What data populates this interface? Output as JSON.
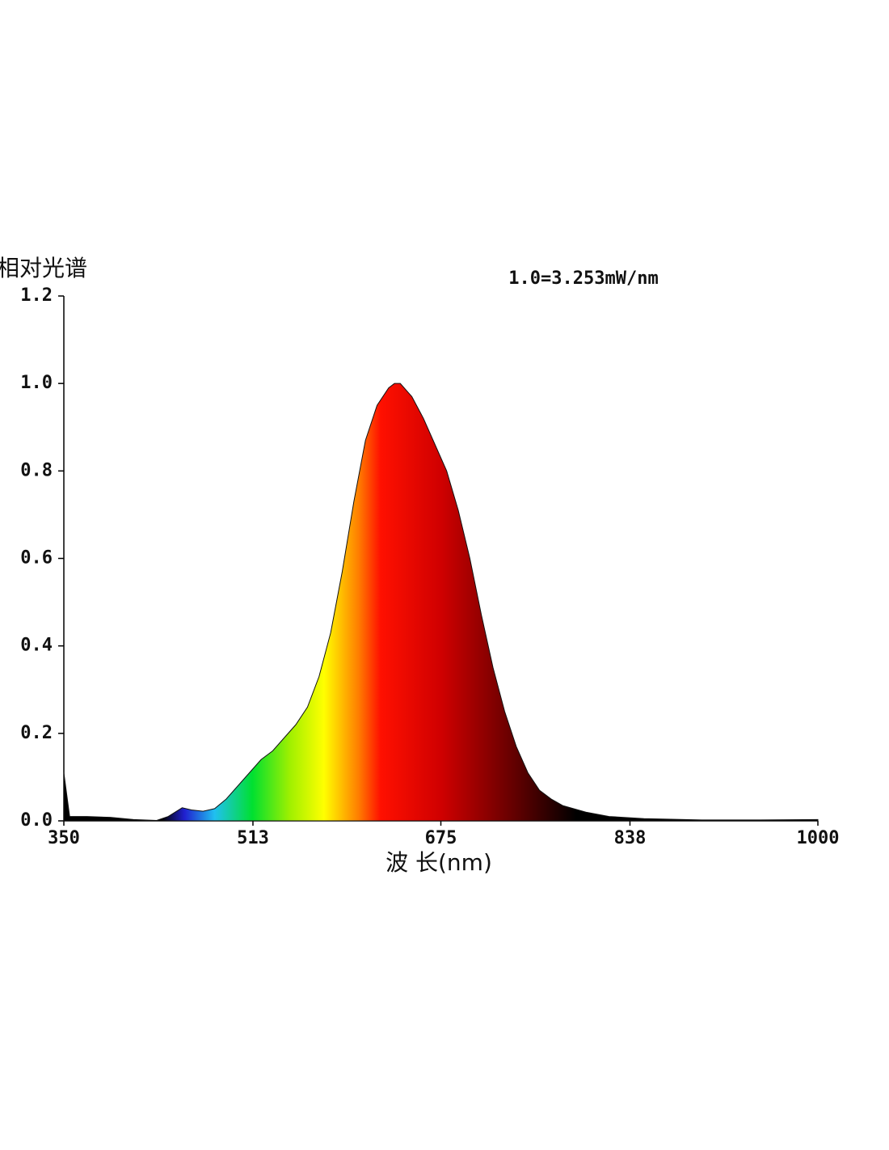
{
  "chart_data": {
    "type": "area",
    "y_label": "相对光谱",
    "annotation": "1.0=3.253mW/nm",
    "x_label": "波 长(nm)",
    "x": [
      350,
      355,
      370,
      390,
      410,
      430,
      440,
      452,
      460,
      470,
      480,
      490,
      500,
      510,
      520,
      530,
      540,
      550,
      560,
      570,
      580,
      590,
      600,
      610,
      620,
      630,
      635,
      640,
      650,
      660,
      670,
      680,
      690,
      700,
      710,
      720,
      730,
      740,
      750,
      760,
      770,
      780,
      800,
      820,
      850,
      900,
      950,
      1000
    ],
    "values": [
      0.11,
      0.01,
      0.01,
      0.008,
      0.003,
      0.001,
      0.01,
      0.03,
      0.025,
      0.022,
      0.028,
      0.05,
      0.08,
      0.11,
      0.14,
      0.16,
      0.19,
      0.22,
      0.26,
      0.33,
      0.43,
      0.57,
      0.73,
      0.87,
      0.95,
      0.99,
      1.0,
      1.0,
      0.97,
      0.92,
      0.86,
      0.8,
      0.71,
      0.6,
      0.47,
      0.35,
      0.25,
      0.17,
      0.11,
      0.07,
      0.05,
      0.035,
      0.02,
      0.01,
      0.005,
      0.002,
      0.002,
      0.003
    ],
    "xlim": [
      350,
      1000
    ],
    "xticks": [
      350,
      513,
      675,
      838,
      1000
    ],
    "ylim": [
      0,
      1.2
    ],
    "yticks": [
      {
        "value": 0,
        "label": "0.0"
      },
      0.2,
      0.4,
      0.6,
      0.8,
      {
        "value": 1,
        "label": "1.0"
      },
      1.2
    ]
  }
}
